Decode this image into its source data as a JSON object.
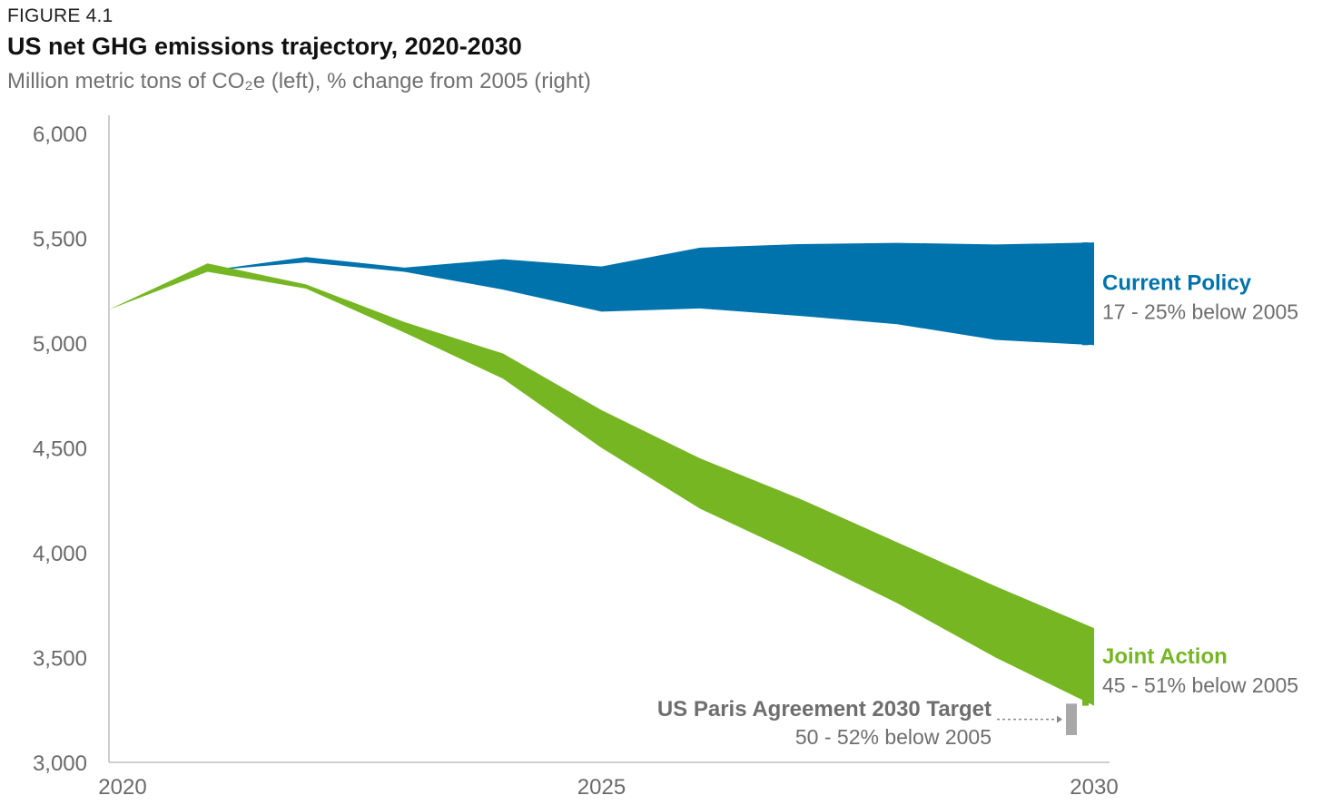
{
  "figure_label": "FIGURE 4.1",
  "title": "US net GHG emissions trajectory, 2020-2030",
  "subtitle": "Million metric tons of CO₂e (left), % change from 2005 (right)",
  "colors": {
    "current_policy": "#0073ac",
    "joint_action": "#76b623",
    "paris_target": "#a8a8a8",
    "axis": "#bdbdbd",
    "tick_text": "#6a6a6a"
  },
  "chart_data": {
    "type": "area",
    "x_ticks": [
      "2020",
      "2025",
      "2030"
    ],
    "y_ticks": [
      "6,000",
      "5,500",
      "5,000",
      "4,500",
      "4,000",
      "3,500",
      "3,000"
    ],
    "xlim": [
      2020,
      2030
    ],
    "ylim": [
      3000,
      6000
    ],
    "grid": false,
    "history": {
      "x": [
        2020,
        2021
      ],
      "y": [
        5160,
        5345
      ]
    },
    "series": [
      {
        "name": "Current Policy",
        "x": [
          2021,
          2022,
          2023,
          2024,
          2025,
          2026,
          2027,
          2028,
          2029,
          2030
        ],
        "upper": [
          5345,
          5410,
          5360,
          5400,
          5365,
          5455,
          5472,
          5478,
          5470,
          5480
        ],
        "lower": [
          5345,
          5385,
          5340,
          5255,
          5150,
          5165,
          5130,
          5090,
          5015,
          4990
        ],
        "label": "Current Policy",
        "range_text": "17 - 25% below 2005"
      },
      {
        "name": "Joint Action",
        "x": [
          2021,
          2022,
          2023,
          2024,
          2025,
          2026,
          2027,
          2028,
          2029,
          2030
        ],
        "upper": [
          5380,
          5280,
          5100,
          4950,
          4680,
          4450,
          4260,
          4050,
          3840,
          3640
        ],
        "lower": [
          5340,
          5260,
          5050,
          4830,
          4500,
          4210,
          3990,
          3760,
          3500,
          3270
        ],
        "label": "Joint Action",
        "range_text": "45 - 51% below 2005"
      }
    ],
    "target": {
      "label": "US Paris Agreement 2030 Target",
      "range_text": "50 - 52% below 2005",
      "upper": 3280,
      "lower": 3130
    }
  }
}
